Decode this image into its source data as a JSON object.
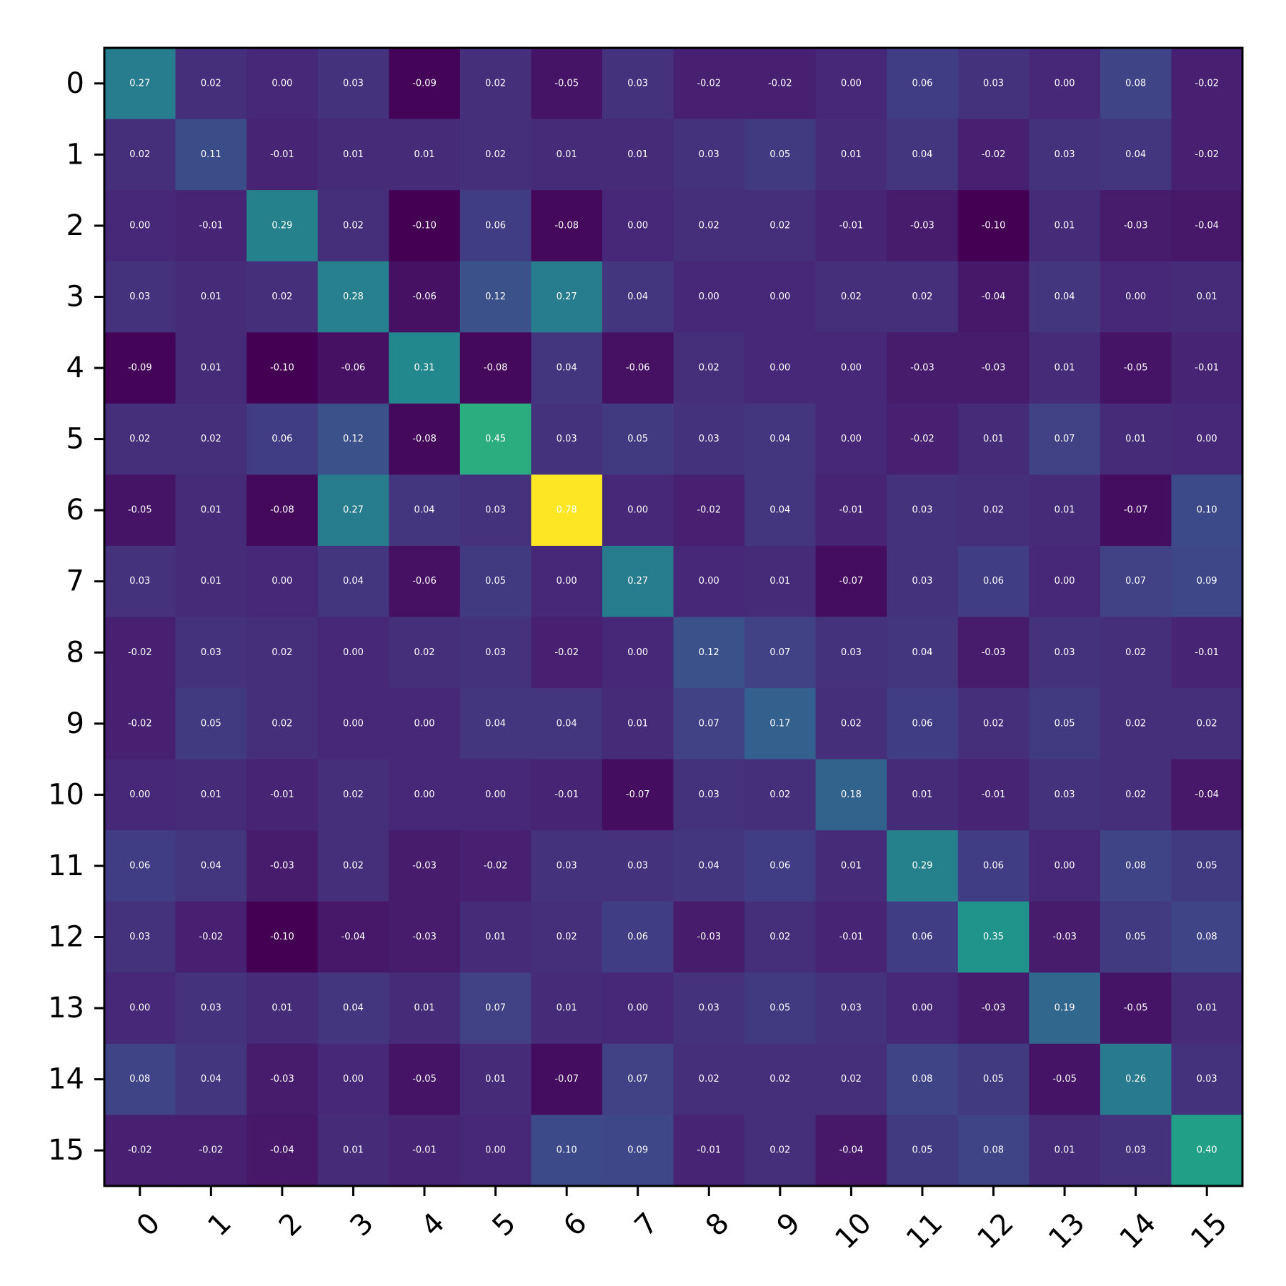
{
  "chart_data": {
    "type": "heatmap",
    "title": "",
    "xlabel": "",
    "ylabel": "",
    "x_categories": [
      "0",
      "1",
      "2",
      "3",
      "4",
      "5",
      "6",
      "7",
      "8",
      "9",
      "10",
      "11",
      "12",
      "13",
      "14",
      "15"
    ],
    "y_categories": [
      "0",
      "1",
      "2",
      "3",
      "4",
      "5",
      "6",
      "7",
      "8",
      "9",
      "10",
      "11",
      "12",
      "13",
      "14",
      "15"
    ],
    "colormap": "viridis",
    "value_range": [
      -0.1,
      0.78
    ],
    "cell_label_format": "2 decimals",
    "values": [
      [
        0.27,
        0.02,
        0.0,
        0.03,
        -0.09,
        0.02,
        -0.05,
        0.03,
        -0.02,
        -0.02,
        0.0,
        0.06,
        0.03,
        0.0,
        0.08,
        -0.02
      ],
      [
        0.02,
        0.11,
        -0.01,
        0.01,
        0.01,
        0.02,
        0.01,
        0.01,
        0.03,
        0.05,
        0.01,
        0.04,
        -0.02,
        0.03,
        0.04,
        -0.02
      ],
      [
        0.0,
        -0.01,
        0.29,
        0.02,
        -0.1,
        0.06,
        -0.08,
        0.0,
        0.02,
        0.02,
        -0.01,
        -0.03,
        -0.1,
        0.01,
        -0.03,
        -0.04
      ],
      [
        0.03,
        0.01,
        0.02,
        0.28,
        -0.06,
        0.12,
        0.27,
        0.04,
        0.0,
        -0.0,
        0.02,
        0.02,
        -0.04,
        0.04,
        -0.0,
        0.01
      ],
      [
        -0.09,
        0.01,
        -0.1,
        -0.06,
        0.31,
        -0.08,
        0.04,
        -0.06,
        0.02,
        0.0,
        0.0,
        -0.03,
        -0.03,
        0.01,
        -0.05,
        -0.01
      ],
      [
        0.02,
        0.02,
        0.06,
        0.12,
        -0.08,
        0.45,
        0.03,
        0.05,
        0.03,
        0.04,
        0.0,
        -0.02,
        0.01,
        0.07,
        0.01,
        0.0
      ],
      [
        -0.05,
        0.01,
        -0.08,
        0.27,
        0.04,
        0.03,
        0.78,
        0.0,
        -0.02,
        0.04,
        -0.01,
        0.03,
        0.02,
        0.01,
        -0.07,
        0.1
      ],
      [
        0.03,
        0.01,
        0.0,
        0.04,
        -0.06,
        0.05,
        0.0,
        0.27,
        -0.0,
        0.01,
        -0.07,
        0.03,
        0.06,
        -0.0,
        0.07,
        0.09
      ],
      [
        -0.02,
        0.03,
        0.02,
        0.0,
        0.02,
        0.03,
        -0.02,
        -0.0,
        0.12,
        0.07,
        0.03,
        0.04,
        -0.03,
        0.03,
        0.02,
        -0.01
      ],
      [
        -0.02,
        0.05,
        0.02,
        -0.0,
        0.0,
        0.04,
        0.04,
        0.01,
        0.07,
        0.17,
        0.02,
        0.06,
        0.02,
        0.05,
        0.02,
        0.02
      ],
      [
        0.0,
        0.01,
        -0.01,
        0.02,
        0.0,
        0.0,
        -0.01,
        -0.07,
        0.03,
        0.02,
        0.18,
        0.01,
        -0.01,
        0.03,
        0.02,
        -0.04
      ],
      [
        0.06,
        0.04,
        -0.03,
        0.02,
        -0.03,
        -0.02,
        0.03,
        0.03,
        0.04,
        0.06,
        0.01,
        0.29,
        0.06,
        -0.0,
        0.08,
        0.05
      ],
      [
        0.03,
        -0.02,
        -0.1,
        -0.04,
        -0.03,
        0.01,
        0.02,
        0.06,
        -0.03,
        0.02,
        -0.01,
        0.06,
        0.35,
        -0.03,
        0.05,
        0.08
      ],
      [
        0.0,
        0.03,
        0.01,
        0.04,
        0.01,
        0.07,
        0.01,
        -0.0,
        0.03,
        0.05,
        0.03,
        -0.0,
        -0.03,
        0.19,
        -0.05,
        0.01
      ],
      [
        0.08,
        0.04,
        -0.03,
        -0.0,
        -0.05,
        0.01,
        -0.07,
        0.07,
        0.02,
        0.02,
        0.02,
        0.08,
        0.05,
        -0.05,
        0.26,
        0.03
      ],
      [
        -0.02,
        -0.02,
        -0.04,
        0.01,
        -0.01,
        0.0,
        0.1,
        0.09,
        -0.01,
        0.02,
        -0.04,
        0.05,
        0.08,
        0.01,
        0.03,
        0.4
      ]
    ],
    "grid": false,
    "legend": "none"
  }
}
